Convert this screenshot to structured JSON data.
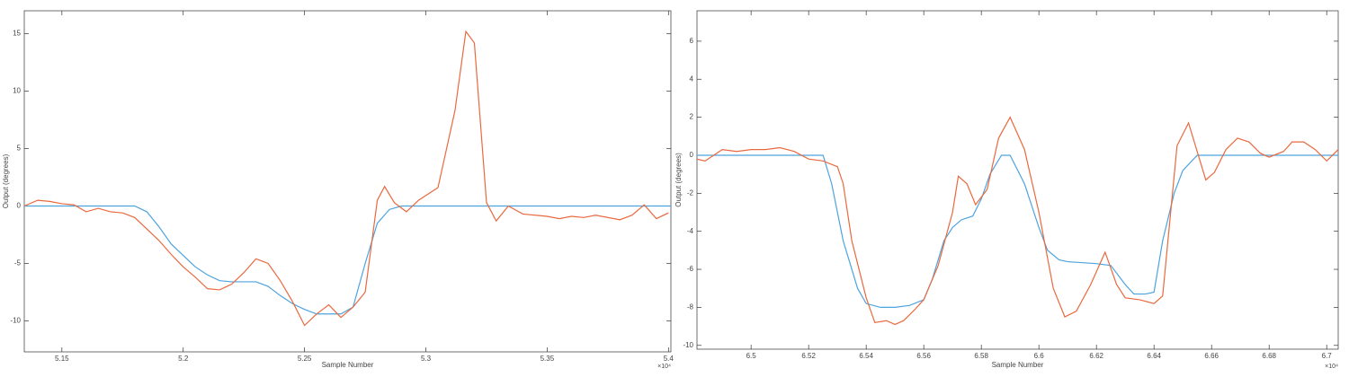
{
  "chart_data": [
    {
      "type": "line",
      "x_label": "Sample Number",
      "y_label": "Output (degrees)",
      "x_exponent": "×10⁴",
      "xlim": [
        51345,
        54010
      ],
      "ylim": [
        -12.7,
        17
      ],
      "xticks": [
        {
          "value": 51500,
          "label": "5.15"
        },
        {
          "value": 52000,
          "label": "5.2"
        },
        {
          "value": 52500,
          "label": "5.25"
        },
        {
          "value": 53000,
          "label": "5.3"
        },
        {
          "value": 53500,
          "label": "5.35"
        },
        {
          "value": 54000,
          "label": "5.4"
        }
      ],
      "yticks": [
        -10,
        -5,
        0,
        5,
        10,
        15
      ],
      "series": [
        {
          "color": "#4da3de",
          "x": [
            51345,
            51800,
            51850,
            51900,
            51950,
            52000,
            52050,
            52100,
            52150,
            52200,
            52300,
            52350,
            52400,
            52450,
            52500,
            52550,
            52600,
            52650,
            52700,
            52750,
            52800,
            52850,
            52900,
            54010
          ],
          "values": [
            0,
            0,
            -0.5,
            -1.8,
            -3.3,
            -4.3,
            -5.3,
            -6.0,
            -6.5,
            -6.6,
            -6.6,
            -7.0,
            -7.8,
            -8.5,
            -9.0,
            -9.4,
            -9.4,
            -9.4,
            -8.8,
            -5,
            -1.5,
            -0.3,
            0,
            0
          ]
        },
        {
          "color": "#e9693f",
          "x": [
            51345,
            51400,
            51450,
            51500,
            51550,
            51600,
            51650,
            51700,
            51750,
            51800,
            51850,
            51900,
            51950,
            52000,
            52050,
            52100,
            52150,
            52200,
            52250,
            52300,
            52350,
            52400,
            52450,
            52500,
            52550,
            52600,
            52650,
            52700,
            52750,
            52800,
            52830,
            52870,
            52920,
            52970,
            53050,
            53120,
            53165,
            53200,
            53250,
            53290,
            53340,
            53400,
            53500,
            53550,
            53600,
            53650,
            53700,
            53800,
            53850,
            53900,
            53950,
            54000
          ],
          "values": [
            0,
            0.5,
            0.4,
            0.2,
            0.1,
            -0.5,
            -0.2,
            -0.5,
            -0.6,
            -1.0,
            -2.0,
            -3.0,
            -4.2,
            -5.3,
            -6.2,
            -7.2,
            -7.3,
            -6.8,
            -5.8,
            -4.6,
            -5.0,
            -6.5,
            -8.3,
            -10.4,
            -9.4,
            -8.6,
            -9.7,
            -8.8,
            -7.5,
            0.5,
            1.7,
            0.3,
            -0.5,
            0.5,
            1.6,
            8.3,
            15.2,
            14.2,
            0.3,
            -1.3,
            0,
            -0.7,
            -0.9,
            -1.1,
            -0.9,
            -1.0,
            -0.8,
            -1.2,
            -0.8,
            0.1,
            -1.1,
            -0.6
          ]
        }
      ]
    },
    {
      "type": "line",
      "x_label": "Sample Number",
      "y_label": "Output (degrees)",
      "x_exponent": "×10⁴",
      "xlim": [
        64812,
        67040
      ],
      "ylim": [
        -10.2,
        7.6
      ],
      "xticks": [
        {
          "value": 65000,
          "label": "6.5"
        },
        {
          "value": 65200,
          "label": "6.52"
        },
        {
          "value": 65400,
          "label": "6.54"
        },
        {
          "value": 65600,
          "label": "6.56"
        },
        {
          "value": 65800,
          "label": "6.58"
        },
        {
          "value": 66000,
          "label": "6.6"
        },
        {
          "value": 66200,
          "label": "6.62"
        },
        {
          "value": 66400,
          "label": "6.64"
        },
        {
          "value": 66600,
          "label": "6.66"
        },
        {
          "value": 66800,
          "label": "6.68"
        },
        {
          "value": 67000,
          "label": "6.7"
        }
      ],
      "yticks": [
        -10,
        -8,
        -6,
        -4,
        -2,
        0,
        2,
        4,
        6
      ],
      "series": [
        {
          "color": "#4da3de",
          "x": [
            64812,
            65250,
            65280,
            65320,
            65370,
            65400,
            65450,
            65500,
            65550,
            65600,
            65630,
            65670,
            65700,
            65730,
            65770,
            65800,
            65830,
            65870,
            65900,
            65950,
            66000,
            66030,
            66070,
            66100,
            66200,
            66250,
            66300,
            66330,
            66370,
            66400,
            66430,
            66470,
            66500,
            66550,
            67040
          ],
          "values": [
            0,
            0,
            -1.5,
            -4.5,
            -7,
            -7.8,
            -8,
            -8,
            -7.9,
            -7.6,
            -6.5,
            -4.5,
            -3.8,
            -3.4,
            -3.2,
            -2.3,
            -1,
            0,
            0,
            -1.5,
            -3.8,
            -5,
            -5.5,
            -5.6,
            -5.7,
            -5.8,
            -6.8,
            -7.3,
            -7.3,
            -7.2,
            -4.5,
            -2,
            -0.8,
            0,
            0
          ]
        },
        {
          "color": "#e9693f",
          "x": [
            64812,
            64840,
            64900,
            64950,
            65000,
            65050,
            65100,
            65150,
            65200,
            65250,
            65300,
            65320,
            65350,
            65400,
            65430,
            65470,
            65500,
            65530,
            65570,
            65600,
            65650,
            65700,
            65720,
            65750,
            65780,
            65820,
            65860,
            65900,
            65950,
            66000,
            66050,
            66090,
            66130,
            66180,
            66230,
            66270,
            66300,
            66350,
            66400,
            66430,
            66480,
            66520,
            66580,
            66610,
            66650,
            66690,
            66730,
            66770,
            66800,
            66850,
            66880,
            66920,
            66960,
            67000,
            67040
          ],
          "values": [
            -0.2,
            -0.3,
            0.3,
            0.2,
            0.3,
            0.3,
            0.4,
            0.2,
            -0.2,
            -0.3,
            -0.6,
            -1.5,
            -4.5,
            -7.5,
            -8.8,
            -8.7,
            -8.9,
            -8.7,
            -8.1,
            -7.6,
            -5.8,
            -3,
            -1.1,
            -1.5,
            -2.6,
            -1.8,
            0.9,
            2,
            0.3,
            -3,
            -7,
            -8.5,
            -8.2,
            -6.8,
            -5.1,
            -6.8,
            -7.5,
            -7.6,
            -7.8,
            -7.4,
            0.5,
            1.7,
            -1.3,
            -0.9,
            0.3,
            0.9,
            0.7,
            0.1,
            -0.1,
            0.2,
            0.7,
            0.7,
            0.3,
            -0.3,
            0.3
          ]
        }
      ]
    }
  ]
}
